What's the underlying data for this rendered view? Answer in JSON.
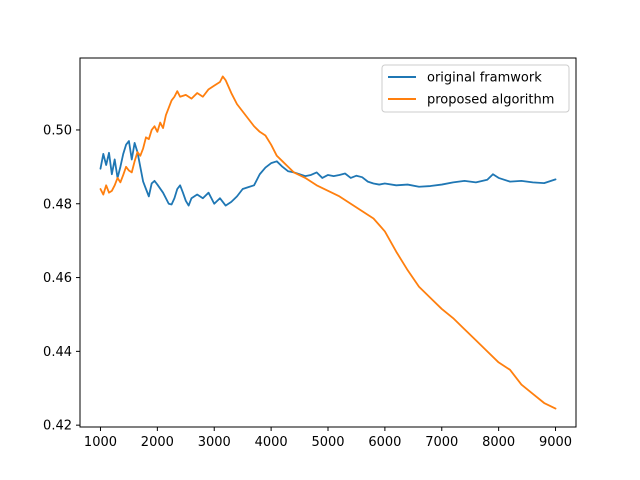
{
  "chart_data": {
    "type": "line",
    "title": "",
    "xlabel": "",
    "ylabel": "",
    "xlim": [
      640,
      9360
    ],
    "ylim": [
      0.4195,
      0.5195
    ],
    "xticks": [
      1000,
      2000,
      3000,
      4000,
      5000,
      6000,
      7000,
      8000,
      9000
    ],
    "yticks": [
      0.42,
      0.44,
      0.46,
      0.48,
      0.5
    ],
    "xtick_labels": [
      "1000",
      "2000",
      "3000",
      "4000",
      "5000",
      "6000",
      "7000",
      "8000",
      "9000"
    ],
    "ytick_labels": [
      "0.42",
      "0.44",
      "0.46",
      "0.48",
      "0.50"
    ],
    "grid": false,
    "legend_position": "upper-right",
    "series": [
      {
        "name": "original framwork",
        "color": "#1f77b4",
        "x": [
          1000,
          1050,
          1100,
          1150,
          1200,
          1250,
          1300,
          1350,
          1400,
          1450,
          1500,
          1550,
          1600,
          1650,
          1700,
          1750,
          1800,
          1850,
          1900,
          1950,
          2000,
          2100,
          2200,
          2250,
          2300,
          2350,
          2400,
          2450,
          2500,
          2550,
          2600,
          2700,
          2800,
          2900,
          3000,
          3100,
          3200,
          3300,
          3400,
          3500,
          3600,
          3700,
          3800,
          3900,
          4000,
          4100,
          4200,
          4300,
          4400,
          4500,
          4600,
          4700,
          4800,
          4900,
          5000,
          5100,
          5200,
          5300,
          5400,
          5500,
          5600,
          5700,
          5800,
          5900,
          6000,
          6200,
          6400,
          6600,
          6800,
          7000,
          7200,
          7400,
          7600,
          7800,
          7900,
          8000,
          8200,
          8400,
          8600,
          8800,
          9000
        ],
        "values": [
          0.4895,
          0.4935,
          0.4905,
          0.4938,
          0.488,
          0.492,
          0.487,
          0.49,
          0.4935,
          0.496,
          0.497,
          0.492,
          0.4965,
          0.494,
          0.49,
          0.486,
          0.484,
          0.482,
          0.4855,
          0.4862,
          0.4852,
          0.483,
          0.48,
          0.4798,
          0.4815,
          0.484,
          0.485,
          0.483,
          0.4808,
          0.4795,
          0.4815,
          0.4825,
          0.4815,
          0.483,
          0.48,
          0.4815,
          0.4795,
          0.4805,
          0.482,
          0.484,
          0.4845,
          0.485,
          0.488,
          0.4898,
          0.491,
          0.4915,
          0.49,
          0.4888,
          0.4885,
          0.488,
          0.4875,
          0.4878,
          0.4885,
          0.487,
          0.4878,
          0.4875,
          0.4878,
          0.4882,
          0.487,
          0.4876,
          0.4872,
          0.486,
          0.4855,
          0.4852,
          0.4855,
          0.485,
          0.4852,
          0.4846,
          0.4848,
          0.4852,
          0.4858,
          0.4862,
          0.4858,
          0.4865,
          0.488,
          0.487,
          0.486,
          0.4862,
          0.4858,
          0.4856,
          0.4866
        ]
      },
      {
        "name": "proposed algorithm",
        "color": "#ff7f0e",
        "x": [
          1000,
          1050,
          1100,
          1150,
          1200,
          1250,
          1300,
          1350,
          1400,
          1450,
          1500,
          1550,
          1600,
          1650,
          1700,
          1750,
          1800,
          1850,
          1900,
          1950,
          2000,
          2050,
          2100,
          2150,
          2200,
          2250,
          2300,
          2350,
          2400,
          2500,
          2600,
          2700,
          2800,
          2900,
          3000,
          3100,
          3150,
          3200,
          3300,
          3400,
          3500,
          3600,
          3700,
          3800,
          3900,
          4000,
          4100,
          4200,
          4300,
          4400,
          4600,
          4800,
          5000,
          5200,
          5400,
          5600,
          5800,
          6000,
          6200,
          6400,
          6600,
          6800,
          7000,
          7200,
          7400,
          7600,
          7800,
          8000,
          8200,
          8400,
          8600,
          8800,
          9000
        ],
        "values": [
          0.484,
          0.4825,
          0.485,
          0.483,
          0.4835,
          0.485,
          0.487,
          0.4858,
          0.4878,
          0.49,
          0.489,
          0.4885,
          0.4915,
          0.494,
          0.493,
          0.495,
          0.498,
          0.4975,
          0.5,
          0.501,
          0.4995,
          0.502,
          0.5005,
          0.504,
          0.506,
          0.508,
          0.509,
          0.5105,
          0.509,
          0.5095,
          0.5085,
          0.51,
          0.509,
          0.511,
          0.512,
          0.513,
          0.5145,
          0.5135,
          0.51,
          0.507,
          0.505,
          0.503,
          0.501,
          0.4995,
          0.4985,
          0.496,
          0.493,
          0.4915,
          0.49,
          0.4885,
          0.487,
          0.485,
          0.4835,
          0.482,
          0.48,
          0.478,
          0.476,
          0.4725,
          0.467,
          0.462,
          0.4575,
          0.4545,
          0.4515,
          0.449,
          0.446,
          0.443,
          0.44,
          0.437,
          0.435,
          0.431,
          0.4285,
          0.426,
          0.4245
        ]
      }
    ]
  }
}
